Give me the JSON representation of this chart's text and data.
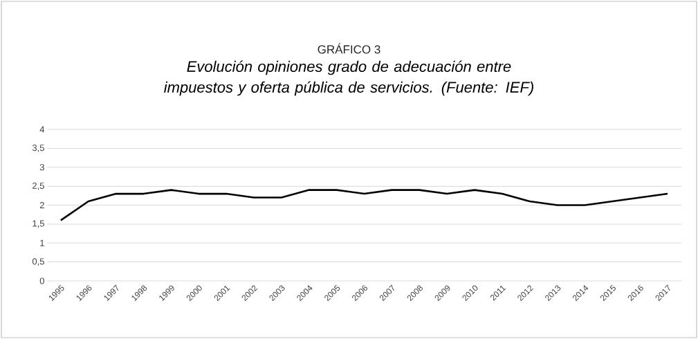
{
  "chart_data": {
    "type": "line",
    "title": "GRÁFICO 3",
    "subtitle": "Evolución opiniones grado de adecuación entre impuestos y oferta pública de servicios. (Fuente: IEF)",
    "categories": [
      "1995",
      "1996",
      "1997",
      "1998",
      "1999",
      "2000",
      "2001",
      "2002",
      "2003",
      "2004",
      "2005",
      "2006",
      "2007",
      "2008",
      "2009",
      "2010",
      "2011",
      "2012",
      "2013",
      "2014",
      "2015",
      "2016",
      "2017"
    ],
    "series": [
      {
        "color": "#000000",
        "values": [
          1.6,
          2.1,
          2.3,
          2.3,
          2.4,
          2.3,
          2.3,
          2.2,
          2.2,
          2.4,
          2.4,
          2.3,
          2.4,
          2.4,
          2.3,
          2.4,
          2.3,
          2.1,
          2.0,
          2.0,
          2.1,
          2.2,
          2.3
        ]
      }
    ],
    "ylim": [
      0,
      4
    ],
    "yticks": [
      0,
      {
        "value": 0.5,
        "label": "0,5"
      },
      1,
      {
        "value": 1.5,
        "label": "1,5"
      },
      2,
      {
        "value": 2.5,
        "label": "2,5"
      },
      3,
      {
        "value": 3.5,
        "label": "3,5"
      },
      4
    ],
    "grid": "y",
    "line_style": "solid",
    "legend": false
  }
}
